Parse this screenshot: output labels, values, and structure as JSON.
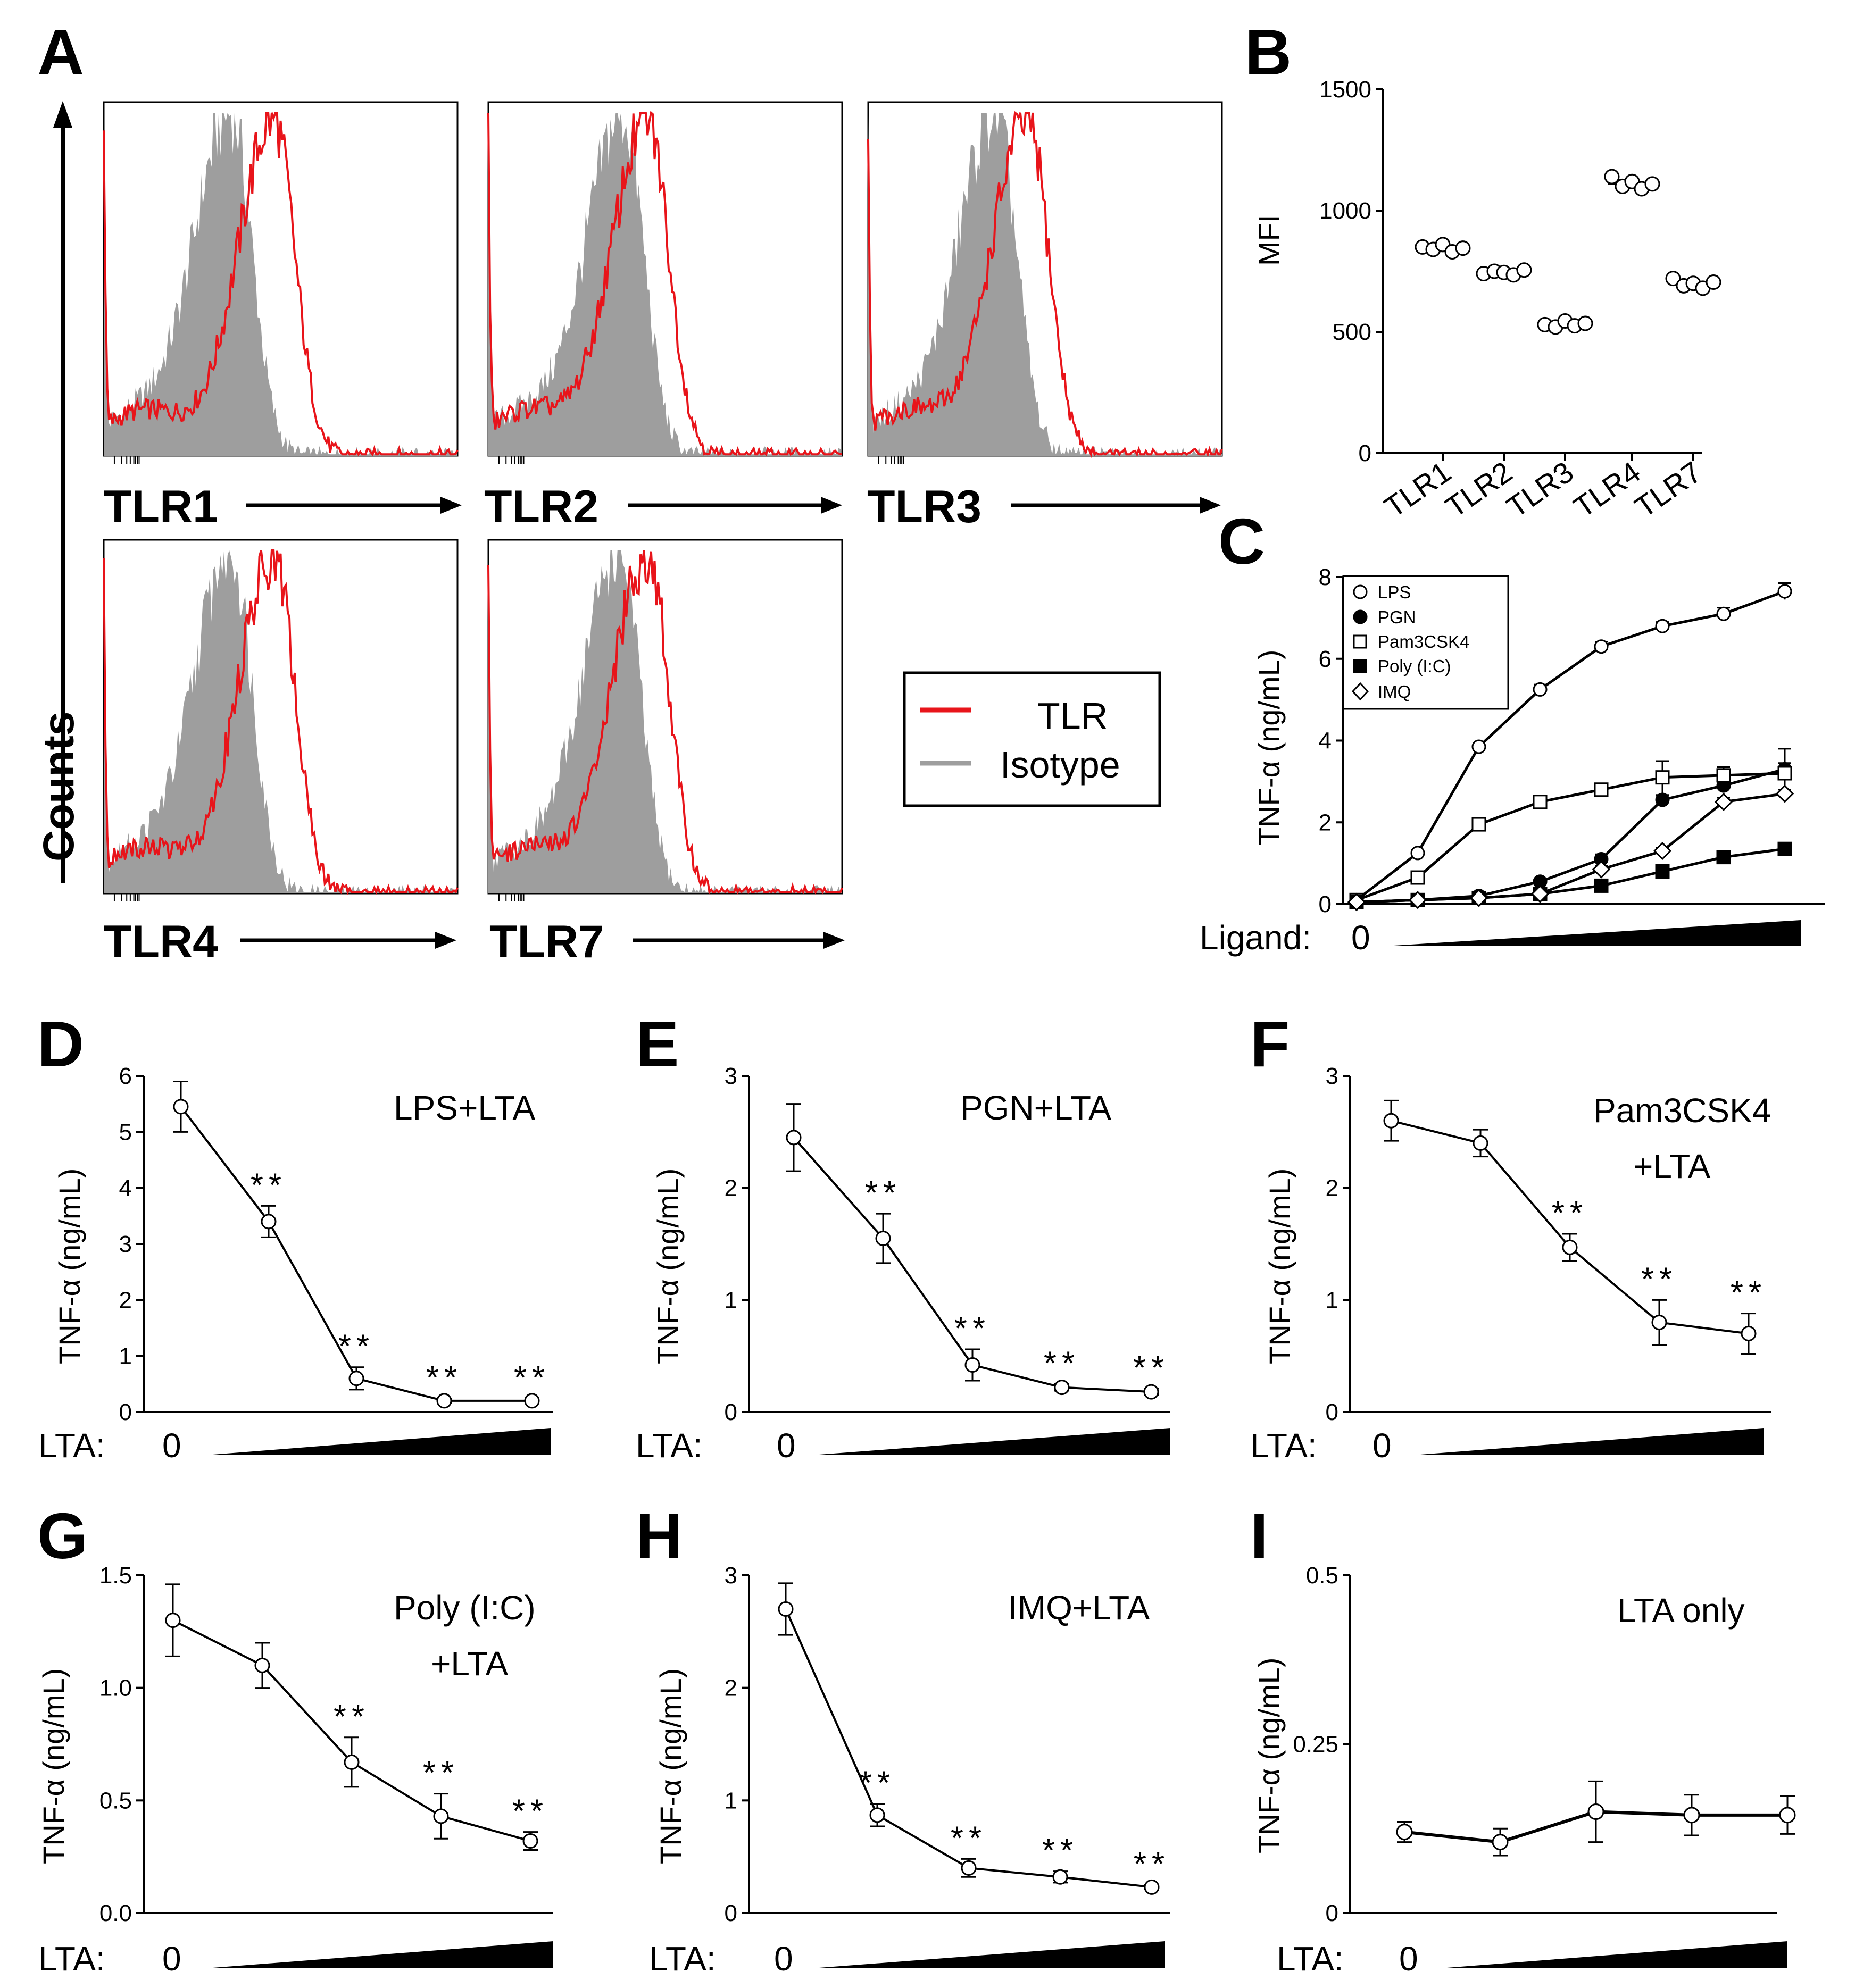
{
  "colors": {
    "tlr": "#e8141a",
    "isotype": "#9e9e9e",
    "ink": "#000000"
  },
  "chart_data": [
    {
      "panel": "A",
      "type": "histogram",
      "ylabel": "Counts",
      "legend": [
        "TLR",
        "Isotype"
      ],
      "histograms": [
        {
          "label": "TLR1",
          "isotype_peak": 0.36,
          "tlr_peak": 0.48
        },
        {
          "label": "TLR2",
          "isotype_peak": 0.38,
          "tlr_peak": 0.45
        },
        {
          "label": "TLR3",
          "isotype_peak": 0.36,
          "tlr_peak": 0.45
        },
        {
          "label": "TLR4",
          "isotype_peak": 0.36,
          "tlr_peak": 0.48
        },
        {
          "label": "TLR7",
          "isotype_peak": 0.37,
          "tlr_peak": 0.45
        }
      ]
    },
    {
      "panel": "B",
      "type": "scatter",
      "ylabel": "MFI",
      "ylim": [
        0,
        1500
      ],
      "yticks": [
        "0",
        "500",
        "1000",
        "1500"
      ],
      "categories": [
        "TLR1",
        "TLR2",
        "TLR3",
        "TLR4",
        "TLR7"
      ],
      "means": [
        845,
        745,
        530,
        1110,
        700
      ],
      "points": [
        [
          850,
          840,
          860,
          830,
          845
        ],
        [
          740,
          750,
          745,
          735,
          755
        ],
        [
          530,
          520,
          545,
          525,
          535
        ],
        [
          1140,
          1100,
          1120,
          1090,
          1110
        ],
        [
          720,
          690,
          700,
          680,
          705
        ]
      ]
    },
    {
      "panel": "C",
      "type": "line",
      "ylabel": "TNF-α (ng/mL)",
      "xlabel": "Ligand:",
      "x0_label": "0",
      "ylim": [
        0,
        8
      ],
      "yticks": [
        "0",
        "2",
        "4",
        "6",
        "8"
      ],
      "series": [
        {
          "name": "LPS",
          "marker": "circle-open",
          "values": [
            0.1,
            1.25,
            3.85,
            5.25,
            6.3,
            6.8,
            7.1,
            7.65
          ],
          "err": [
            0.05,
            0.08,
            0.08,
            0.12,
            0.12,
            0.1,
            0.15,
            0.2
          ]
        },
        {
          "name": "PGN",
          "marker": "circle-filled",
          "values": [
            0.05,
            0.1,
            0.2,
            0.55,
            1.1,
            2.55,
            2.9,
            3.3
          ],
          "err": [
            0.03,
            0.04,
            0.05,
            0.08,
            0.12,
            0.12,
            0.15,
            0.5
          ]
        },
        {
          "name": "Pam3CSK4",
          "marker": "square-open",
          "values": [
            0.1,
            0.65,
            1.95,
            2.5,
            2.8,
            3.1,
            3.15,
            3.2
          ],
          "err": [
            0.05,
            0.06,
            0.08,
            0.08,
            0.1,
            0.4,
            0.2,
            0.25
          ]
        },
        {
          "name": "Poly (I:C)",
          "marker": "square-filled",
          "values": [
            0.05,
            0.1,
            0.15,
            0.25,
            0.45,
            0.8,
            1.15,
            1.35
          ],
          "err": [
            0.03,
            0.03,
            0.04,
            0.04,
            0.06,
            0.06,
            0.08,
            0.08
          ]
        },
        {
          "name": "IMQ",
          "marker": "diamond-open",
          "values": [
            0.05,
            0.1,
            0.15,
            0.25,
            0.85,
            1.3,
            2.5,
            2.7
          ],
          "err": [
            0.03,
            0.03,
            0.04,
            0.05,
            0.08,
            0.08,
            0.1,
            0.1
          ]
        }
      ]
    },
    {
      "panel": "D",
      "type": "line",
      "note": [
        "LPS+LTA"
      ],
      "ylabel": "TNF-α (ng/mL)",
      "xlabel": "LTA:",
      "x0_label": "0",
      "ylim": [
        0,
        6
      ],
      "yticks": [
        "0",
        "1",
        "2",
        "3",
        "4",
        "5",
        "6"
      ],
      "values": [
        5.45,
        3.4,
        0.6,
        0.2,
        0.2
      ],
      "err": [
        0.45,
        0.28,
        0.2,
        0.04,
        0.04
      ],
      "sig": [
        "",
        "**",
        "**",
        "**",
        "**"
      ]
    },
    {
      "panel": "E",
      "type": "line",
      "note": [
        "PGN+LTA"
      ],
      "ylabel": "TNF-α (ng/mL)",
      "xlabel": "LTA:",
      "x0_label": "0",
      "ylim": [
        0,
        3
      ],
      "yticks": [
        "0",
        "1",
        "2",
        "3"
      ],
      "values": [
        2.45,
        1.55,
        0.42,
        0.22,
        0.18
      ],
      "err": [
        0.3,
        0.22,
        0.14,
        0.03,
        0.03
      ],
      "sig": [
        "",
        "**",
        "**",
        "**",
        "**"
      ]
    },
    {
      "panel": "F",
      "type": "line",
      "note": [
        "Pam3CSK4",
        "+LTA"
      ],
      "ylabel": "TNF-α (ng/mL)",
      "xlabel": "LTA:",
      "x0_label": "0",
      "ylim": [
        0,
        3
      ],
      "yticks": [
        "0",
        "1",
        "2",
        "3"
      ],
      "values": [
        2.6,
        2.4,
        1.47,
        0.8,
        0.7
      ],
      "err": [
        0.18,
        0.12,
        0.12,
        0.2,
        0.18
      ],
      "sig": [
        "",
        "",
        "**",
        "**",
        "**"
      ]
    },
    {
      "panel": "G",
      "type": "line",
      "note": [
        "Poly (I:C)",
        "+LTA"
      ],
      "ylabel": "TNF-α (ng/mL)",
      "xlabel": "LTA:",
      "x0_label": "0",
      "ylim": [
        0,
        1.5
      ],
      "yticks": [
        "0.0",
        "0.5",
        "1.0",
        "1.5"
      ],
      "values": [
        1.3,
        1.1,
        0.67,
        0.43,
        0.32
      ],
      "err": [
        0.16,
        0.1,
        0.11,
        0.1,
        0.04
      ],
      "sig": [
        "",
        "",
        "**",
        "**",
        "**"
      ]
    },
    {
      "panel": "H",
      "type": "line",
      "note": [
        "IMQ+LTA"
      ],
      "ylabel": "TNF-α (ng/mL)",
      "xlabel": "LTA:",
      "x0_label": "0",
      "ylim": [
        0,
        3
      ],
      "yticks": [
        "0",
        "1",
        "2",
        "3"
      ],
      "values": [
        2.7,
        0.87,
        0.4,
        0.32,
        0.23
      ],
      "err": [
        0.23,
        0.1,
        0.08,
        0.05,
        0.02
      ],
      "sig": [
        "",
        "**",
        "**",
        "**",
        "**"
      ]
    },
    {
      "panel": "I",
      "type": "line",
      "note": [
        "LTA only"
      ],
      "ylabel": "TNF-α (ng/mL)",
      "xlabel": "LTA:",
      "x0_label": "0",
      "ylim": [
        0,
        0.5
      ],
      "yticks": [
        "0",
        "0.25",
        "0.5"
      ],
      "values": [
        0.12,
        0.105,
        0.15,
        0.145,
        0.145
      ],
      "err": [
        0.015,
        0.02,
        0.045,
        0.03,
        0.028
      ],
      "sig": [
        "",
        "",
        "",
        "",
        ""
      ]
    }
  ]
}
